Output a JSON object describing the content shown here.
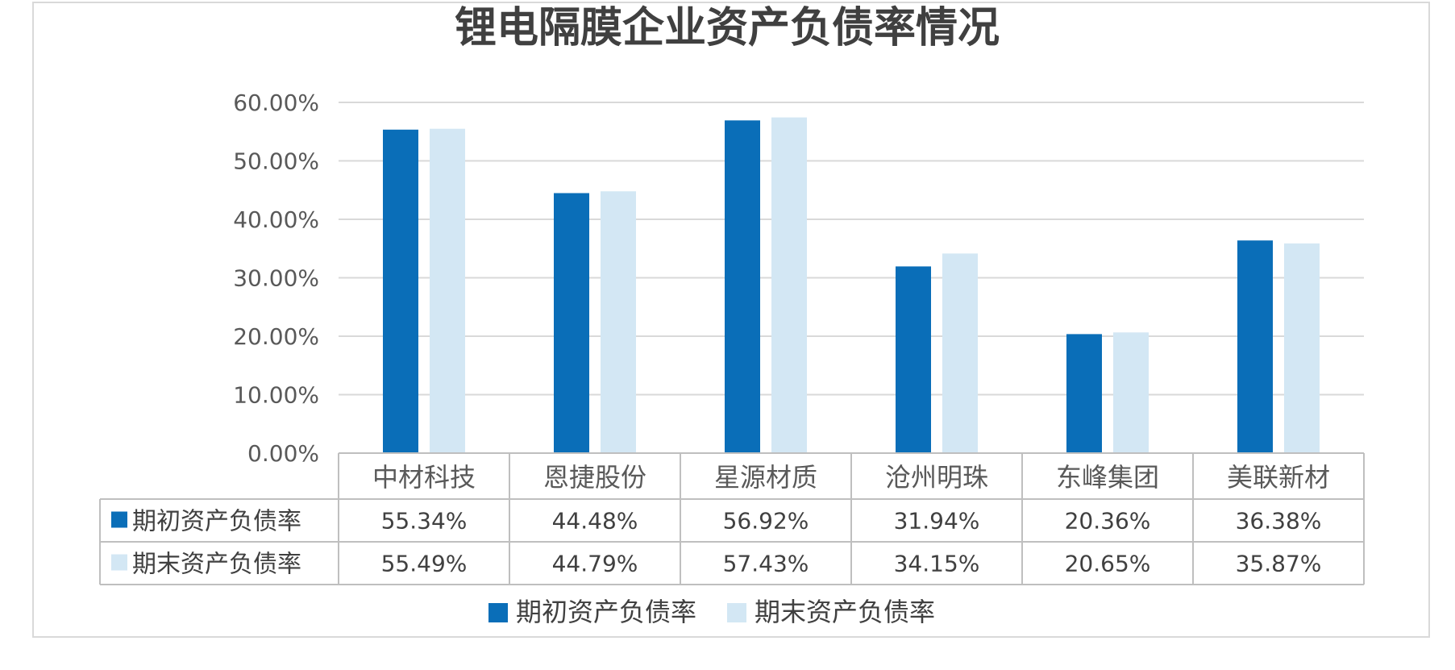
{
  "chart_data": {
    "type": "bar",
    "title": "锂电隔膜企业资产负债率情况",
    "categories": [
      "中材科技",
      "恩捷股份",
      "星源材质",
      "沧州明珠",
      "东峰集团",
      "美联新材"
    ],
    "series": [
      {
        "name": "期初资产负债率",
        "values": [
          55.34,
          44.48,
          56.92,
          31.94,
          20.36,
          36.38
        ],
        "labels": [
          "55.34%",
          "44.48%",
          "56.92%",
          "31.94%",
          "20.36%",
          "36.38%"
        ],
        "color": "#0A6EB8"
      },
      {
        "name": "期末资产负债率",
        "values": [
          55.49,
          44.79,
          57.43,
          34.15,
          20.65,
          35.87
        ],
        "labels": [
          "55.49%",
          "44.79%",
          "57.43%",
          "34.15%",
          "20.65%",
          "35.87%"
        ],
        "color": "#D3E7F4"
      }
    ],
    "yticks": [
      "0.00%",
      "10.00%",
      "20.00%",
      "30.00%",
      "40.00%",
      "50.00%",
      "60.00%"
    ],
    "ylim": [
      0,
      60
    ],
    "grid": true,
    "legend_position": "bottom",
    "data_table": true
  }
}
